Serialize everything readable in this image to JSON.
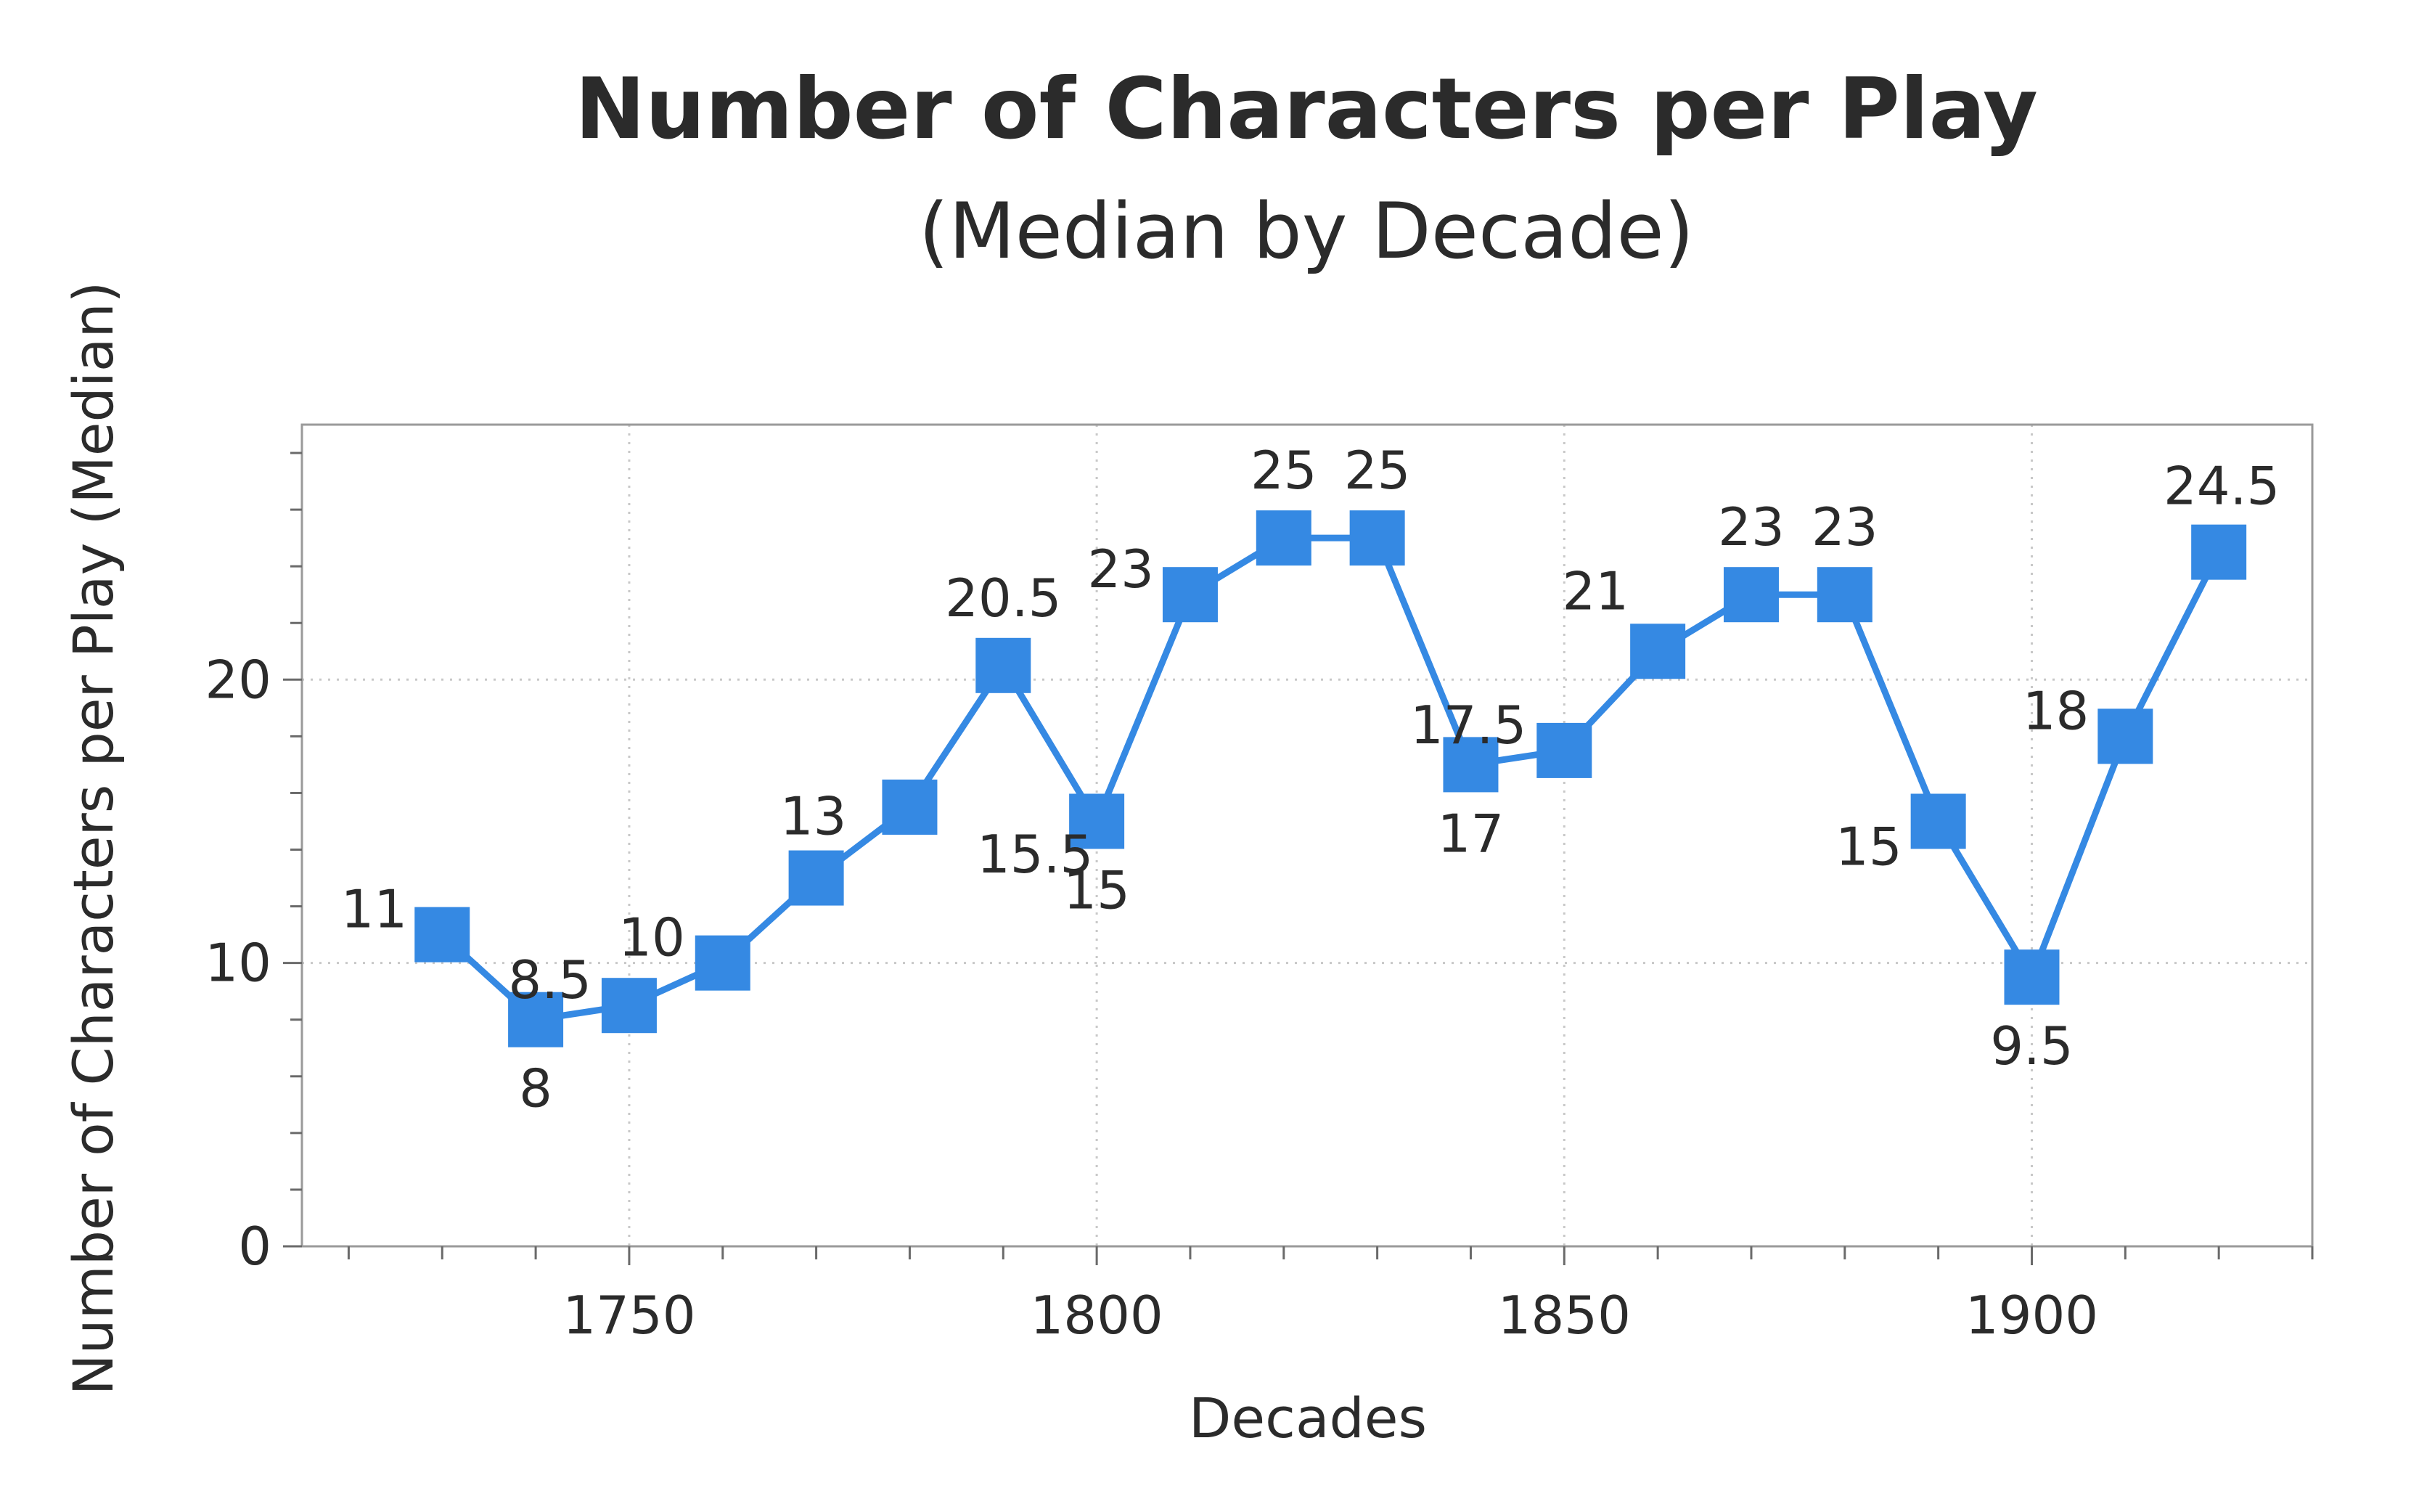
{
  "chart_data": {
    "type": "line",
    "title": "Number of Characters per Play",
    "subtitle": "(Median by Decade)",
    "xlabel": "Decades",
    "ylabel": "Number of Characters per Play (Median)",
    "x": [
      1730,
      1740,
      1750,
      1760,
      1770,
      1780,
      1790,
      1800,
      1810,
      1820,
      1830,
      1840,
      1850,
      1860,
      1870,
      1880,
      1890,
      1900,
      1910,
      1920
    ],
    "series": [
      {
        "values": [
          11,
          8,
          8.5,
          10,
          13,
          15.5,
          20.5,
          15,
          23,
          25,
          25,
          17,
          17.5,
          21,
          23,
          23,
          15,
          9.5,
          18,
          24.5
        ],
        "labels": [
          "11",
          "8",
          "8.5",
          "10",
          "13",
          "",
          "20.5",
          "15",
          "23",
          "25",
          "25",
          "17",
          "17.5",
          "21",
          "23",
          "23",
          "15",
          "9.5",
          "18",
          "24.5"
        ],
        "color": "#3589e3"
      }
    ],
    "extra_labels": [
      {
        "text": "15.5",
        "x": 1790,
        "y": 15.5,
        "anchor": "left-below"
      }
    ],
    "x_ticks": [
      "1750",
      "1800",
      "1850",
      "1900"
    ],
    "y_ticks": [
      "0",
      "10",
      "20"
    ],
    "xlim": [
      1715,
      1930
    ],
    "ylim": [
      0,
      29
    ],
    "grid": true,
    "marker": "square"
  }
}
